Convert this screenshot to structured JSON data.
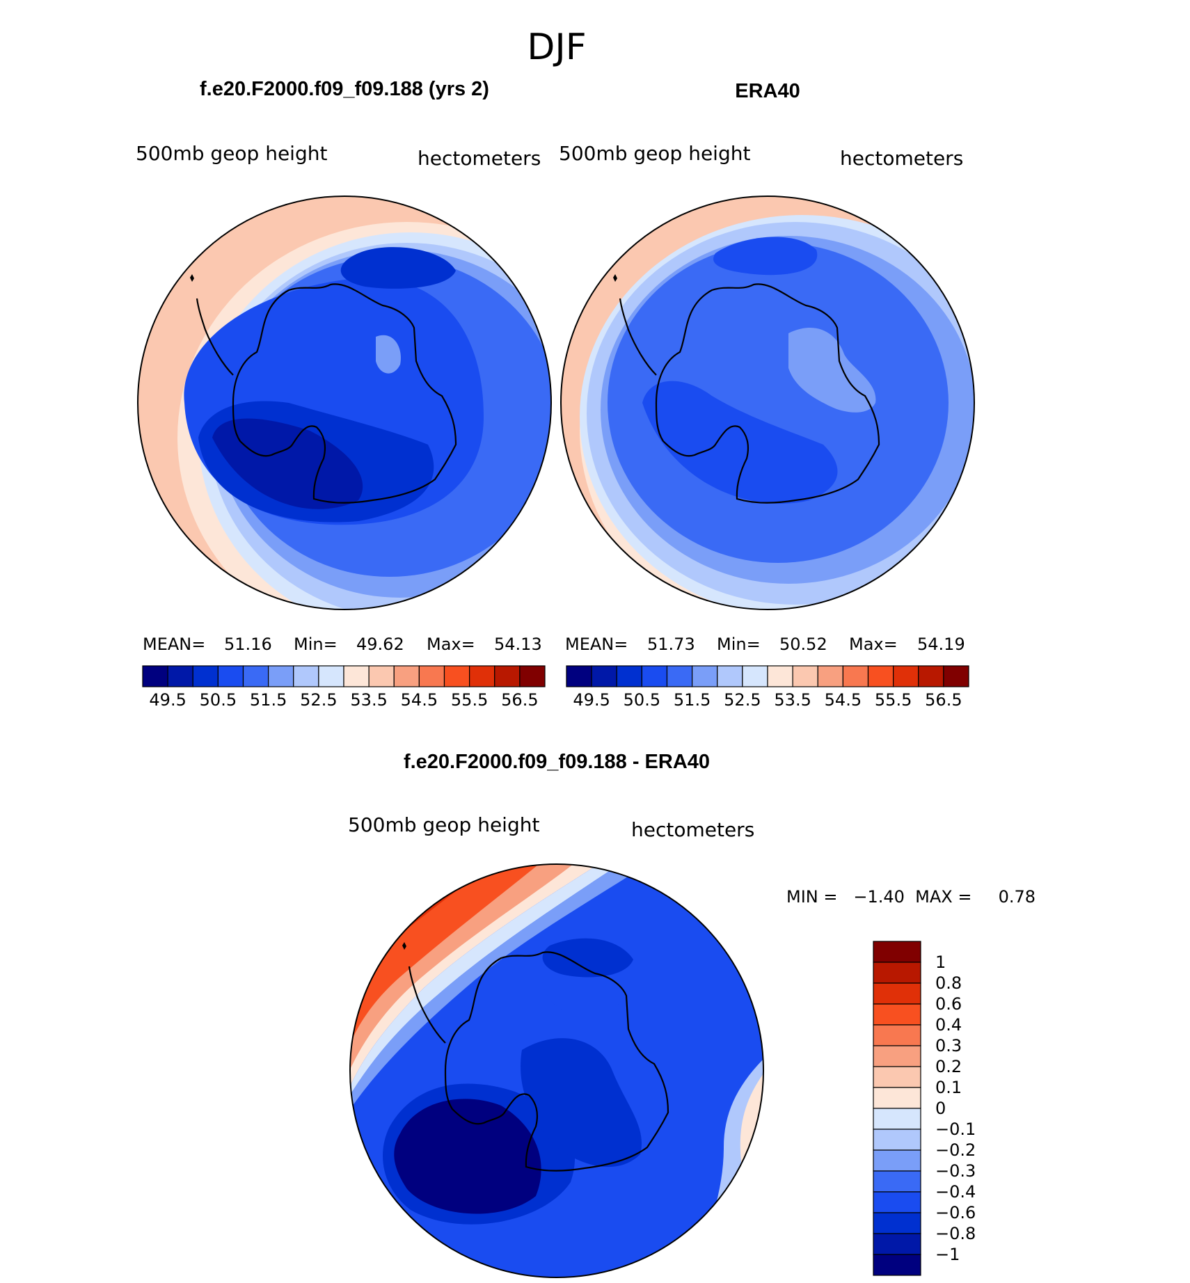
{
  "season": "DJF",
  "panels": {
    "model": {
      "title": "f.e20.F2000.f09_f09.188 (yrs 2)",
      "variable": "500mb  geop  height",
      "units": "hectometers",
      "stats": {
        "mean_label": "MEAN=",
        "mean": "51.16",
        "min_label": "Min=",
        "min": "49.62",
        "max_label": "Max=",
        "max": "54.13"
      }
    },
    "obs": {
      "title": "ERA40",
      "variable": "500mb  geop  height",
      "units": "hectometers",
      "stats": {
        "mean_label": "MEAN=",
        "mean": "51.73",
        "min_label": "Min=",
        "min": "50.52",
        "max_label": "Max=",
        "max": "54.19"
      }
    },
    "diff": {
      "title": "f.e20.F2000.f09_f09.188 - ERA40",
      "variable": "500mb  geop  height",
      "units": "hectometers",
      "minmax": "MIN =   −1.40  MAX =     0.78"
    }
  },
  "colorbar_abs": {
    "colors": [
      "#00007f",
      "#0018a8",
      "#0030d0",
      "#1a4cf0",
      "#3a6af5",
      "#7a9ef8",
      "#b0c8fc",
      "#d6e6fd",
      "#fde6d8",
      "#fbc8b0",
      "#f8a080",
      "#f87850",
      "#f85020",
      "#e03008",
      "#b81800",
      "#800000"
    ],
    "labels": [
      "49.5",
      "50.5",
      "51.5",
      "52.5",
      "53.5",
      "54.5",
      "55.5",
      "56.5"
    ]
  },
  "colorbar_diff": {
    "colors": [
      "#800000",
      "#b81800",
      "#e03008",
      "#f85020",
      "#f87850",
      "#f8a080",
      "#fbc8b0",
      "#fde6d8",
      "#d6e6fd",
      "#b0c8fc",
      "#7a9ef8",
      "#3a6af5",
      "#1a4cf0",
      "#0030d0",
      "#0018a8",
      "#00007f"
    ],
    "labels": [
      "1",
      "0.8",
      "0.6",
      "0.4",
      "0.3",
      "0.2",
      "0.1",
      "0",
      "−0.1",
      "−0.2",
      "−0.3",
      "−0.4",
      "−0.6",
      "−0.8",
      "−1"
    ]
  },
  "colors": {
    "outline": "#000000",
    "coast": "#000000"
  }
}
